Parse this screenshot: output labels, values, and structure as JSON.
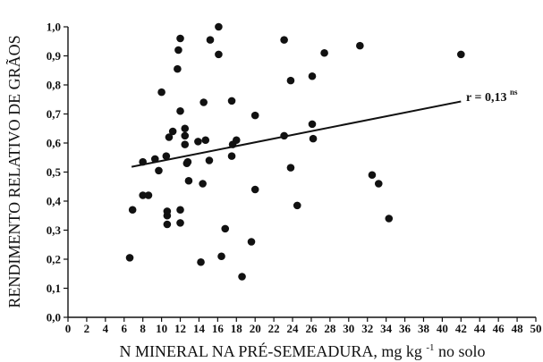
{
  "chart_data": {
    "type": "scatter",
    "xlabel": "N MINERAL NA PRÉ-SEMEADURA, mg kg",
    "xlabel_sup": "-1",
    "xlabel_suffix": " no solo",
    "ylabel": "RENDIMENTO RELATIVO DE GRÃOS",
    "xlim": [
      0,
      50
    ],
    "ylim": [
      0.0,
      1.0
    ],
    "x_ticks": [
      0,
      2,
      4,
      6,
      8,
      10,
      12,
      14,
      16,
      18,
      20,
      22,
      24,
      26,
      28,
      30,
      32,
      34,
      36,
      38,
      40,
      42,
      44,
      46,
      48,
      50
    ],
    "y_ticks": [
      "0,0",
      "0,1",
      "0,2",
      "0,3",
      "0,4",
      "0,5",
      "0,6",
      "0,7",
      "0,8",
      "0,9",
      "1,0"
    ],
    "grid": false,
    "annotation": {
      "text": "r = 0,13",
      "sup": "ns"
    },
    "trendline": {
      "x": [
        6.8,
        42.0
      ],
      "y": [
        0.518,
        0.743
      ]
    },
    "points": [
      [
        6.6,
        0.205
      ],
      [
        6.9,
        0.37
      ],
      [
        8.0,
        0.535
      ],
      [
        8.0,
        0.42
      ],
      [
        8.6,
        0.42
      ],
      [
        9.3,
        0.545
      ],
      [
        9.7,
        0.505
      ],
      [
        10.0,
        0.775
      ],
      [
        10.5,
        0.555
      ],
      [
        10.6,
        0.32
      ],
      [
        10.6,
        0.35
      ],
      [
        10.6,
        0.365
      ],
      [
        10.8,
        0.62
      ],
      [
        11.2,
        0.64
      ],
      [
        11.7,
        0.855
      ],
      [
        11.8,
        0.92
      ],
      [
        12.0,
        0.325
      ],
      [
        12.0,
        0.37
      ],
      [
        12.0,
        0.71
      ],
      [
        12.0,
        0.96
      ],
      [
        12.5,
        0.625
      ],
      [
        12.5,
        0.595
      ],
      [
        12.5,
        0.65
      ],
      [
        12.7,
        0.53
      ],
      [
        12.8,
        0.535
      ],
      [
        12.9,
        0.47
      ],
      [
        13.9,
        0.605
      ],
      [
        14.2,
        0.19
      ],
      [
        14.4,
        0.46
      ],
      [
        14.5,
        0.74
      ],
      [
        14.7,
        0.61
      ],
      [
        15.1,
        0.54
      ],
      [
        15.2,
        0.955
      ],
      [
        16.1,
        1.0
      ],
      [
        16.1,
        0.905
      ],
      [
        16.4,
        0.21
      ],
      [
        16.8,
        0.305
      ],
      [
        17.5,
        0.555
      ],
      [
        17.5,
        0.745
      ],
      [
        17.6,
        0.595
      ],
      [
        18.0,
        0.61
      ],
      [
        18.6,
        0.14
      ],
      [
        19.6,
        0.26
      ],
      [
        20.0,
        0.44
      ],
      [
        20.0,
        0.695
      ],
      [
        23.1,
        0.625
      ],
      [
        23.1,
        0.955
      ],
      [
        23.8,
        0.515
      ],
      [
        23.8,
        0.815
      ],
      [
        24.5,
        0.385
      ],
      [
        26.1,
        0.83
      ],
      [
        26.1,
        0.665
      ],
      [
        26.2,
        0.615
      ],
      [
        27.4,
        0.91
      ],
      [
        31.2,
        0.935
      ],
      [
        32.5,
        0.49
      ],
      [
        33.2,
        0.46
      ],
      [
        34.3,
        0.34
      ],
      [
        42.0,
        0.905
      ]
    ]
  }
}
